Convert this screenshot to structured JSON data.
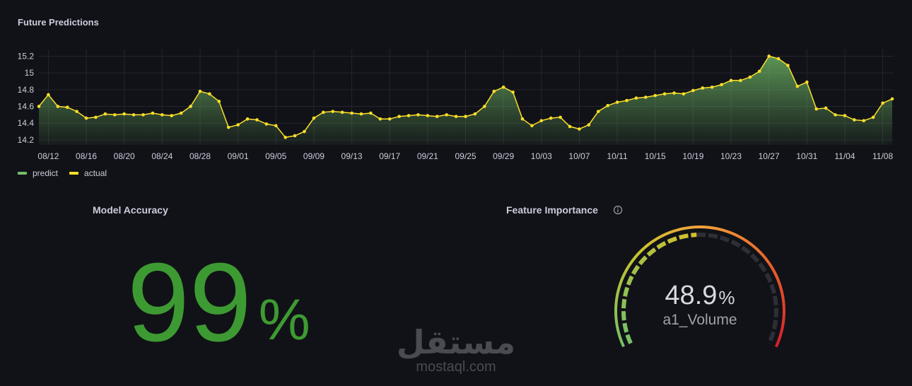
{
  "chart_data": {
    "type": "line",
    "title": "Future Predictions",
    "categories": [
      null,
      "08/12",
      null,
      null,
      null,
      "08/16",
      null,
      null,
      null,
      "08/20",
      null,
      null,
      null,
      "08/24",
      null,
      null,
      null,
      "08/28",
      null,
      null,
      null,
      "09/01",
      null,
      null,
      null,
      "09/05",
      null,
      null,
      null,
      "09/09",
      null,
      null,
      null,
      "09/13",
      null,
      null,
      null,
      "09/17",
      null,
      null,
      null,
      "09/21",
      null,
      null,
      null,
      "09/25",
      null,
      null,
      null,
      "09/29",
      null,
      null,
      null,
      "10/03",
      null,
      null,
      null,
      "10/07",
      null,
      null,
      null,
      "10/11",
      null,
      null,
      null,
      "10/15",
      null,
      null,
      null,
      "10/19",
      null,
      null,
      null,
      "10/23",
      null,
      null,
      null,
      "10/27",
      null,
      null,
      null,
      "10/31",
      null,
      null,
      null,
      "11/04",
      null,
      null,
      null,
      "11/08",
      null
    ],
    "series": [
      {
        "name": "predict",
        "color": "#73bf69",
        "values": [
          14.6,
          14.74,
          14.6,
          14.59,
          14.54,
          14.46,
          14.47,
          14.51,
          14.5,
          14.51,
          14.5,
          14.5,
          14.52,
          14.5,
          14.49,
          14.52,
          14.6,
          14.78,
          14.75,
          14.66,
          14.35,
          14.38,
          14.45,
          14.44,
          14.39,
          14.37,
          14.23,
          14.25,
          14.3,
          14.46,
          14.53,
          14.54,
          14.53,
          14.52,
          14.51,
          14.52,
          14.45,
          14.45,
          14.48,
          14.49,
          14.5,
          14.49,
          14.48,
          14.5,
          14.48,
          14.48,
          14.51,
          14.6,
          14.78,
          14.83,
          14.77,
          14.45,
          14.37,
          14.43,
          14.46,
          14.47,
          14.36,
          14.33,
          14.38,
          14.54,
          14.61,
          14.65,
          14.67,
          14.7,
          14.71,
          14.73,
          14.75,
          14.76,
          14.75,
          14.79,
          14.82,
          14.83,
          14.86,
          14.91,
          14.91,
          14.95,
          15.02,
          15.2,
          15.17,
          15.09,
          14.84,
          14.89,
          14.57,
          14.58,
          14.5,
          14.49,
          14.44,
          14.43,
          14.47,
          14.64,
          14.69
        ]
      },
      {
        "name": "actual",
        "color": "#fade2a",
        "values": [
          14.6,
          14.74,
          14.6,
          14.59,
          14.54,
          14.46,
          14.47,
          14.51,
          14.5,
          14.51,
          14.5,
          14.5,
          14.52,
          14.5,
          14.49,
          14.52,
          14.6,
          14.78,
          14.75,
          14.66,
          14.35,
          14.38,
          14.45,
          14.44,
          14.39,
          14.37,
          14.23,
          14.25,
          14.3,
          14.46,
          14.53,
          14.54,
          14.53,
          14.52,
          14.51,
          14.52,
          14.45,
          14.45,
          14.48,
          14.49,
          14.5,
          14.49,
          14.48,
          14.5,
          14.48,
          14.48,
          14.51,
          14.6,
          14.78,
          14.83,
          14.77,
          14.45,
          14.37,
          14.43,
          14.46,
          14.47,
          14.36,
          14.33,
          14.38,
          14.54,
          14.61,
          14.65,
          14.67,
          14.7,
          14.71,
          14.73,
          14.75,
          14.76,
          14.75,
          14.79,
          14.82,
          14.83,
          14.86,
          14.91,
          14.91,
          14.95,
          15.02,
          15.2,
          15.17,
          15.09,
          14.84,
          14.89,
          14.57,
          14.58,
          14.5,
          14.49,
          14.44,
          14.43,
          14.47,
          14.64,
          14.69
        ]
      }
    ],
    "ylim": [
      14.14,
      15.28
    ],
    "yticks": [
      14.2,
      14.4,
      14.6,
      14.8,
      15,
      15.2
    ],
    "grid": true,
    "legend": "bottom-left"
  },
  "accuracy_panel": {
    "title": "Model Accuracy",
    "value": 99,
    "unit": "%",
    "color": "#3d9a32"
  },
  "gauge_panel": {
    "title": "Feature Importance",
    "value": 48.9,
    "unit": "%",
    "label": "a1_Volume",
    "range": [
      0,
      100
    ]
  },
  "watermark": {
    "arabic": "مستقل",
    "latin": "mostaql.com"
  }
}
